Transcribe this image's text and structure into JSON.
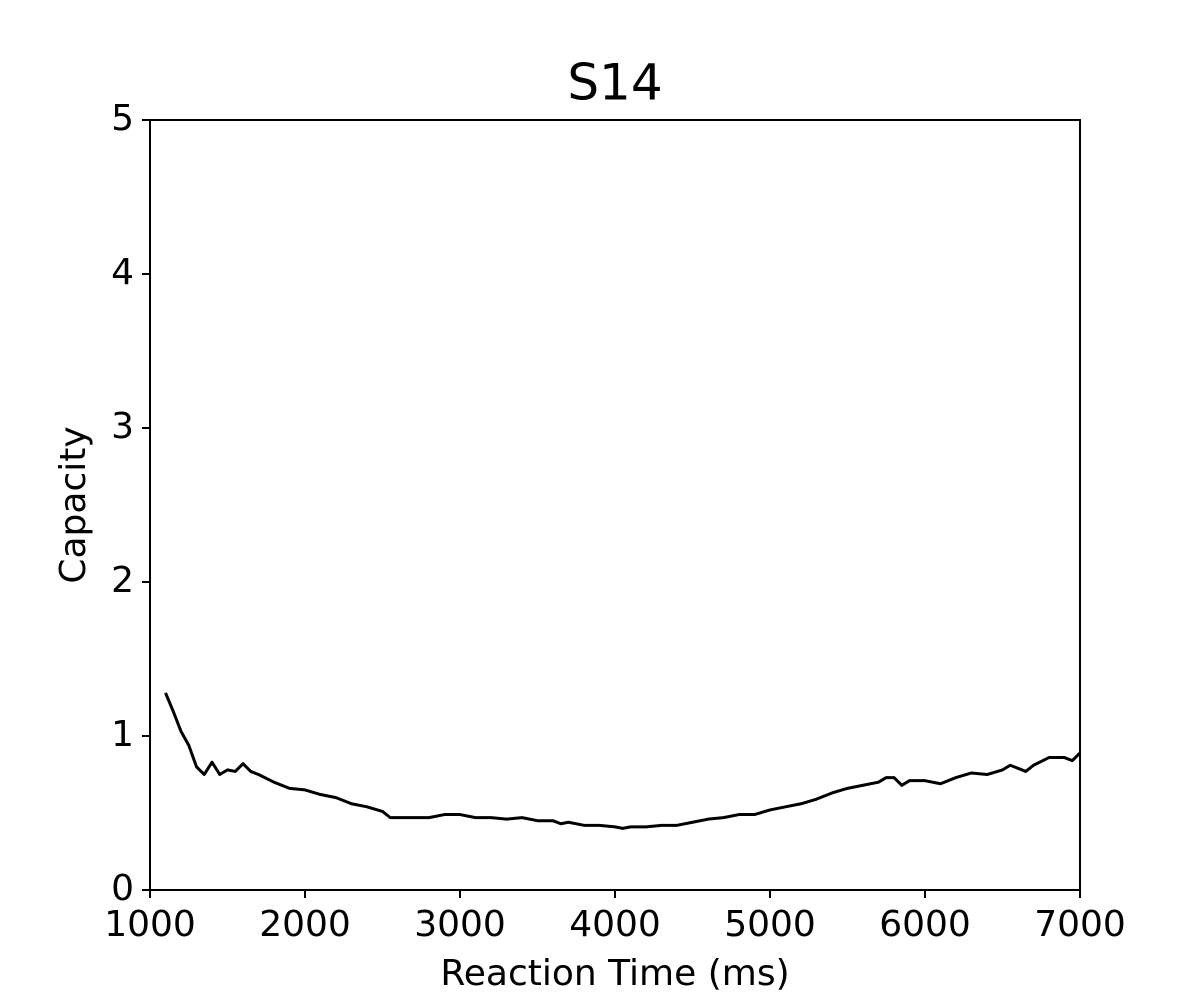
{
  "chart_data": {
    "type": "line",
    "title": "S14",
    "x_label": "Reaction Time (ms)",
    "y_label": "Capacity",
    "x": [
      1100,
      1150,
      1200,
      1250,
      1300,
      1350,
      1400,
      1450,
      1500,
      1550,
      1600,
      1650,
      1700,
      1800,
      1900,
      2000,
      2100,
      2200,
      2300,
      2400,
      2500,
      2550,
      2700,
      2800,
      2900,
      3000,
      3100,
      3200,
      3300,
      3400,
      3500,
      3600,
      3650,
      3700,
      3800,
      3900,
      4000,
      4050,
      4100,
      4200,
      4300,
      4400,
      4500,
      4600,
      4700,
      4800,
      4900,
      5000,
      5100,
      5200,
      5300,
      5400,
      5500,
      5600,
      5700,
      5750,
      5800,
      5850,
      5900,
      6000,
      6100,
      6200,
      6300,
      6400,
      6500,
      6550,
      6650,
      6700,
      6800,
      6900,
      6950,
      7000
    ],
    "series": [
      {
        "name": "Capacity",
        "color": "#000000",
        "values": [
          1.28,
          1.16,
          1.03,
          0.94,
          0.8,
          0.75,
          0.83,
          0.75,
          0.78,
          0.77,
          0.82,
          0.77,
          0.75,
          0.7,
          0.66,
          0.65,
          0.62,
          0.6,
          0.56,
          0.54,
          0.51,
          0.47,
          0.47,
          0.47,
          0.49,
          0.49,
          0.47,
          0.47,
          0.46,
          0.47,
          0.45,
          0.45,
          0.43,
          0.44,
          0.42,
          0.42,
          0.41,
          0.4,
          0.41,
          0.41,
          0.42,
          0.42,
          0.44,
          0.46,
          0.47,
          0.49,
          0.49,
          0.52,
          0.54,
          0.56,
          0.59,
          0.63,
          0.66,
          0.68,
          0.7,
          0.73,
          0.73,
          0.68,
          0.71,
          0.71,
          0.69,
          0.73,
          0.76,
          0.75,
          0.78,
          0.81,
          0.77,
          0.81,
          0.86,
          0.86,
          0.84,
          0.89
        ]
      }
    ],
    "xlim": [
      1000,
      7000
    ],
    "xticks": [
      1000,
      2000,
      3000,
      4000,
      5000,
      6000,
      7000
    ],
    "ylim": [
      0,
      5
    ],
    "yticks": [
      0,
      1,
      2,
      3,
      4,
      5
    ],
    "grid": false
  }
}
